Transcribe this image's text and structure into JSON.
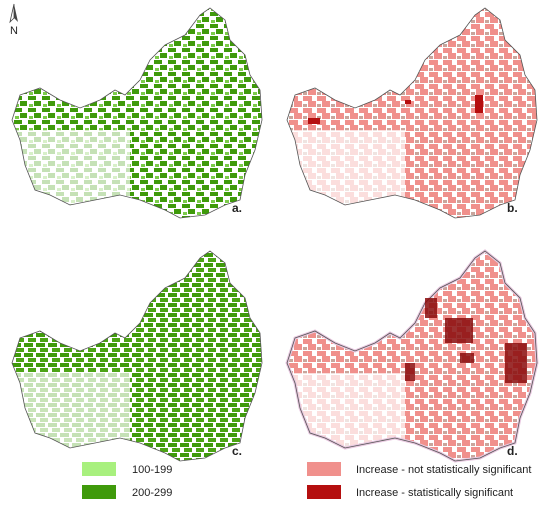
{
  "north_label": "N",
  "panels": [
    {
      "label": "a."
    },
    {
      "label": "b."
    },
    {
      "label": "c."
    },
    {
      "label": "d."
    }
  ],
  "legends": [
    {
      "label": "100-199",
      "color": "#a8f07e"
    },
    {
      "label": "200-299",
      "color": "#3f9a0b"
    },
    {
      "label": "Increase - not statistically significant",
      "color": "#f0908c"
    },
    {
      "label": "Increase - statistically significant",
      "color": "#b50f0f"
    }
  ]
}
